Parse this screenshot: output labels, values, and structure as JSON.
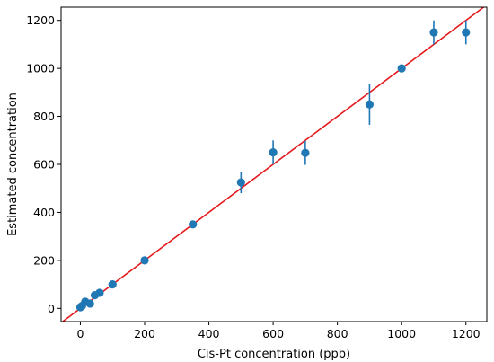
{
  "chart_data": {
    "type": "scatter",
    "title": "",
    "xlabel": "Cis-Pt concentration (ppb)",
    "ylabel": "Estimated concentration",
    "xlim": [
      -60,
      1265
    ],
    "ylim": [
      -55,
      1255
    ],
    "xticks": [
      0,
      200,
      400,
      600,
      800,
      1000,
      1200
    ],
    "yticks": [
      0,
      200,
      400,
      600,
      800,
      1000,
      1200
    ],
    "grid": false,
    "legend": "none",
    "colors": {
      "points": "#1f77b4",
      "fit_line": "#e41a1c",
      "axes": "#000000"
    },
    "points": [
      {
        "x": 0,
        "y": 5,
        "err": 8
      },
      {
        "x": 5,
        "y": 10,
        "err": 8
      },
      {
        "x": 15,
        "y": 28,
        "err": 8
      },
      {
        "x": 30,
        "y": 20,
        "err": 8
      },
      {
        "x": 45,
        "y": 55,
        "err": 8
      },
      {
        "x": 60,
        "y": 65,
        "err": 8
      },
      {
        "x": 100,
        "y": 100,
        "err": 8
      },
      {
        "x": 200,
        "y": 200,
        "err": 8
      },
      {
        "x": 350,
        "y": 350,
        "err": 8
      },
      {
        "x": 500,
        "y": 525,
        "err": 45
      },
      {
        "x": 600,
        "y": 650,
        "err": 50
      },
      {
        "x": 700,
        "y": 648,
        "err": 50
      },
      {
        "x": 900,
        "y": 850,
        "err": 85
      },
      {
        "x": 1000,
        "y": 1000,
        "err": 10
      },
      {
        "x": 1100,
        "y": 1150,
        "err": 50
      },
      {
        "x": 1200,
        "y": 1150,
        "err": 50
      }
    ],
    "fit_line": {
      "slope": 1,
      "intercept": 0
    }
  }
}
